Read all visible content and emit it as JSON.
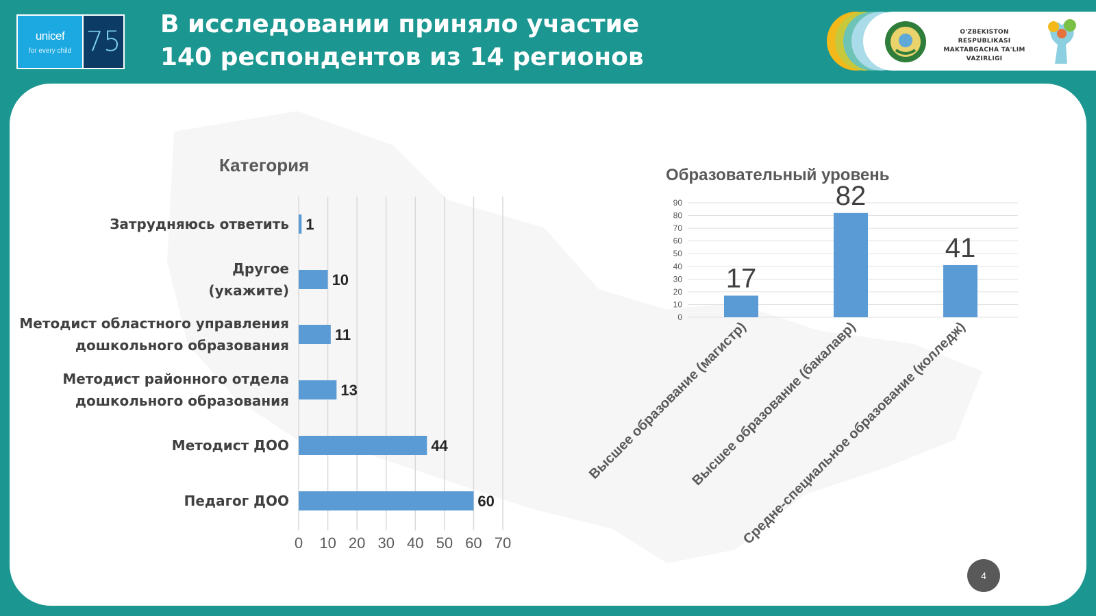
{
  "header": {
    "title_line1": "В исследовании приняло участие",
    "title_line2": "140 респондентов из 14 регионов",
    "unicef_brand": "unicef",
    "unicef_tagline": "for every child",
    "anniversary": "75",
    "ministry_line1": "O'ZBEKISTON RESPUBLIKASI",
    "ministry_line2": "MAKTABGACHA TA'LIM",
    "ministry_line3": "VAZIRLIGI"
  },
  "colors": {
    "teal": "#1b9690",
    "bar": "#5b9bd5",
    "axis_text": "#595959"
  },
  "page_number": "4",
  "chart_data": [
    {
      "type": "bar",
      "orientation": "horizontal",
      "title": "Категория",
      "categories": [
        "Затрудняюсь ответить",
        "Другое (укажите)",
        "Методист областного управления дошкольного образования",
        "Методист районного отдела дошкольного образования",
        "Методист ДОО",
        "Педагог ДОО"
      ],
      "category_lines": [
        [
          "Затрудняюсь ответить"
        ],
        [
          "Другое",
          "(укажите)"
        ],
        [
          "Методист областного управления",
          "дошкольного образования"
        ],
        [
          "Методист районного отдела",
          "дошкольного образования"
        ],
        [
          "Методист ДОО"
        ],
        [
          "Педагог ДОО"
        ]
      ],
      "values": [
        1,
        10,
        11,
        13,
        44,
        60
      ],
      "xlim": [
        0,
        70
      ],
      "xticks": [
        0,
        10,
        20,
        30,
        40,
        50,
        60,
        70
      ],
      "grid": true,
      "data_labels": true
    },
    {
      "type": "bar",
      "orientation": "vertical",
      "title": "Образовательный уровень",
      "categories": [
        "Высшее образование (магистр)",
        "Высшее образование (бакалавр)",
        "Средне-специальное образование (колледж)"
      ],
      "values": [
        17,
        82,
        41
      ],
      "ylim": [
        0,
        90
      ],
      "yticks": [
        0,
        10,
        20,
        30,
        40,
        50,
        60,
        70,
        80,
        90
      ],
      "grid": true,
      "data_labels": true
    }
  ]
}
